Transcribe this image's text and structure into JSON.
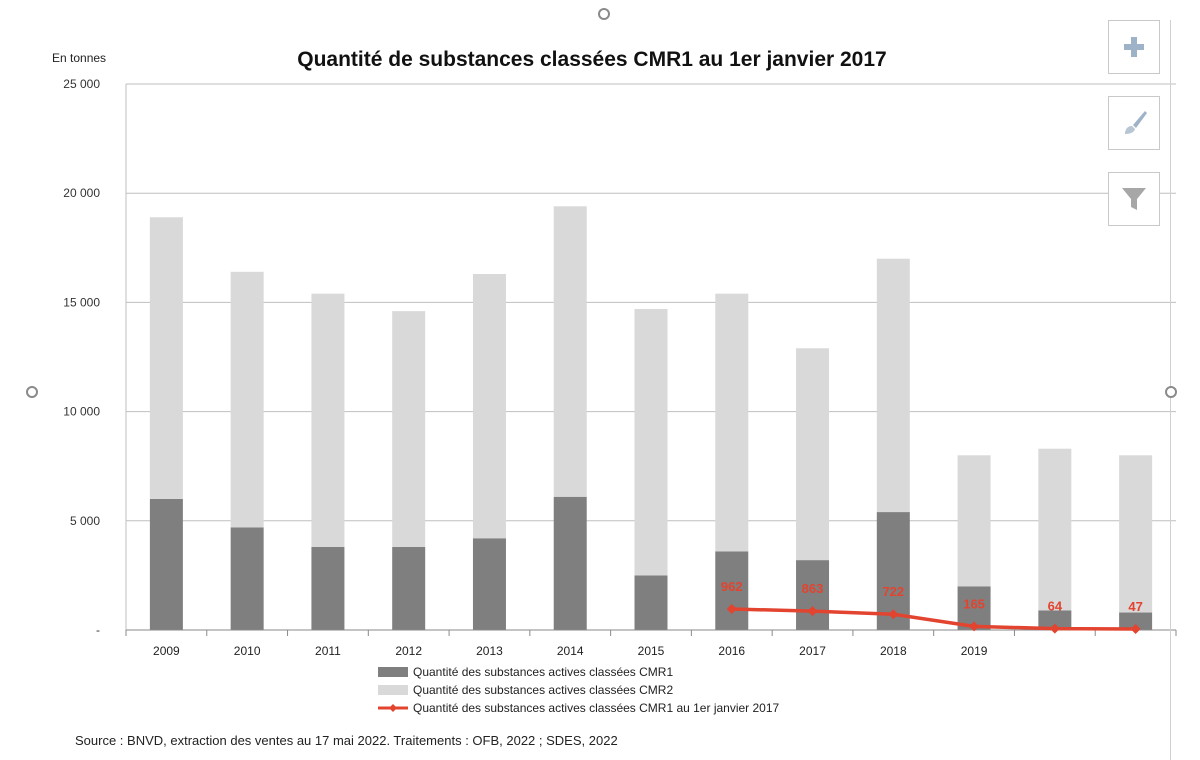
{
  "chart_data": {
    "type": "bar",
    "title": "Quantité de substances classées CMR1 au 1er janvier 2017",
    "ylabel": "En tonnes",
    "ylim": [
      0,
      25000
    ],
    "yticks": [
      {
        "value": 0,
        "label": "-"
      },
      {
        "value": 5000,
        "label": "5 000"
      },
      {
        "value": 10000,
        "label": "10 000"
      },
      {
        "value": 15000,
        "label": "15 000"
      },
      {
        "value": 20000,
        "label": "20 000"
      },
      {
        "value": 25000,
        "label": "25 000"
      }
    ],
    "categories": [
      "2009",
      "2010",
      "2011",
      "2012",
      "2013",
      "2014",
      "2015",
      "2016",
      "2017",
      "2018",
      "2019",
      "",
      ""
    ],
    "stacked": true,
    "series": [
      {
        "name": "Quantité des substances actives classées CMR1",
        "kind": "bar",
        "color": "#7f7f7f",
        "values": [
          6000,
          4700,
          3800,
          3800,
          4200,
          6100,
          2500,
          3600,
          3200,
          5400,
          2000,
          900,
          800
        ]
      },
      {
        "name": "Quantité des substances actives classées CMR2",
        "kind": "bar",
        "color": "#d9d9d9",
        "values": [
          12900,
          11700,
          11600,
          10800,
          12100,
          13300,
          12200,
          11800,
          9700,
          11600,
          6000,
          7400,
          7200
        ]
      },
      {
        "name": "Quantité des substances actives classées CMR1 au 1er janvier 2017",
        "kind": "line",
        "color": "#e2442f",
        "values": [
          null,
          null,
          null,
          null,
          null,
          null,
          null,
          962,
          863,
          722,
          165,
          64,
          47
        ],
        "labels": [
          null,
          null,
          null,
          null,
          null,
          null,
          null,
          "962",
          "863",
          "722",
          "165",
          "64",
          "47"
        ]
      }
    ],
    "grid": true,
    "legend_position": "bottom"
  },
  "source": "Source : BNVD, extraction des ventes au 17 mai 2022. Traitements : OFB, 2022 ; SDES, 2022",
  "tools": {
    "add": "plus-icon",
    "style": "brush-icon",
    "filter": "filter-icon"
  }
}
